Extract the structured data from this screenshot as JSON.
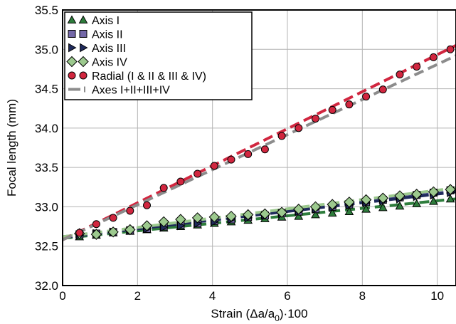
{
  "chart_data": {
    "type": "scatter",
    "xlabel_main": "Strain (Δa/a",
    "xlabel_sub": "0",
    "xlabel_tail": ")·100",
    "ylabel": "Focal length (mm)",
    "xlim": [
      0,
      10.5
    ],
    "ylim": [
      32.0,
      35.5
    ],
    "xticks": [
      "0",
      "2",
      "4",
      "6",
      "8",
      "10"
    ],
    "yticks": [
      "32.0",
      "32.5",
      "33.0",
      "33.5",
      "34.0",
      "34.5",
      "35.0",
      "35.5"
    ],
    "grid": true,
    "legend_position": "top-left",
    "series": [
      {
        "name": "Axis I",
        "marker": "triangle-up",
        "fill": "#2e7d3c",
        "line_color": "#2e7d3c",
        "x": [
          0.45,
          0.9,
          1.35,
          1.8,
          2.25,
          2.7,
          3.15,
          3.6,
          4.05,
          4.5,
          4.95,
          5.4,
          5.85,
          6.3,
          6.75,
          7.2,
          7.65,
          8.1,
          8.55,
          9.0,
          9.45,
          9.9,
          10.35
        ],
        "y": [
          32.62,
          32.64,
          32.67,
          32.69,
          32.71,
          32.73,
          32.75,
          32.77,
          32.79,
          32.81,
          32.83,
          32.85,
          32.87,
          32.88,
          32.9,
          32.92,
          32.94,
          32.97,
          32.99,
          33.01,
          33.04,
          33.07,
          33.1
        ],
        "fit": [
          [
            0,
            32.6
          ],
          [
            10.5,
            33.1
          ]
        ]
      },
      {
        "name": "Axis II",
        "marker": "square",
        "fill": "#7468a8",
        "line_color": "#4a4a8a",
        "x": [
          0.45,
          0.9,
          1.35,
          1.8,
          2.25,
          2.7,
          3.15,
          3.6,
          4.05,
          4.5,
          4.95,
          5.4,
          5.85,
          6.3,
          6.75,
          7.2,
          7.65,
          8.1,
          8.55,
          9.0,
          9.45,
          9.9,
          10.35
        ],
        "y": [
          32.65,
          32.66,
          32.68,
          32.7,
          32.72,
          32.75,
          32.77,
          32.79,
          32.82,
          32.84,
          32.87,
          32.89,
          32.92,
          32.94,
          32.97,
          33.0,
          33.03,
          33.06,
          33.09,
          33.12,
          33.15,
          33.18,
          33.21
        ],
        "fit": [
          [
            0,
            32.62
          ],
          [
            10.5,
            33.2
          ]
        ]
      },
      {
        "name": "Axis III",
        "marker": "triangle-right",
        "fill": "#1f2a5c",
        "line_color": "#1f2a5c",
        "x": [
          0.45,
          0.9,
          1.35,
          1.8,
          2.25,
          2.7,
          3.15,
          3.6,
          4.05,
          4.5,
          4.95,
          5.4,
          5.85,
          6.3,
          6.75,
          7.2,
          7.65,
          8.1,
          8.55,
          9.0,
          9.45,
          9.9,
          10.35
        ],
        "y": [
          32.64,
          32.66,
          32.68,
          32.7,
          32.72,
          32.74,
          32.76,
          32.79,
          32.81,
          32.84,
          32.86,
          32.89,
          32.91,
          32.94,
          32.97,
          32.99,
          33.02,
          33.05,
          33.07,
          33.1,
          33.13,
          33.15,
          33.18
        ],
        "fit": [
          [
            0,
            32.61
          ],
          [
            10.5,
            33.19
          ]
        ]
      },
      {
        "name": "Axis IV",
        "marker": "diamond",
        "fill": "#9cc98e",
        "line_color": "#9cc98e",
        "x": [
          0.45,
          0.9,
          1.35,
          1.8,
          2.25,
          2.7,
          3.15,
          3.6,
          4.05,
          4.5,
          4.95,
          5.4,
          5.85,
          6.3,
          6.75,
          7.2,
          7.65,
          8.1,
          8.55,
          9.0,
          9.45,
          9.9,
          10.35
        ],
        "y": [
          32.66,
          32.65,
          32.68,
          32.71,
          32.76,
          32.81,
          32.84,
          32.86,
          32.87,
          32.88,
          32.9,
          32.91,
          32.93,
          32.97,
          33.0,
          33.03,
          33.06,
          33.09,
          33.11,
          33.14,
          33.16,
          33.19,
          33.22
        ],
        "fit": [
          [
            0,
            32.62
          ],
          [
            10.5,
            33.24
          ]
        ]
      },
      {
        "name": "Radial (I & II & III & IV)",
        "marker": "circle",
        "fill": "#d1263f",
        "line_color": "#d1263f",
        "x": [
          0.45,
          0.9,
          1.35,
          1.8,
          2.25,
          2.7,
          3.15,
          3.6,
          4.05,
          4.5,
          4.95,
          5.4,
          5.85,
          6.3,
          6.75,
          7.2,
          7.65,
          8.1,
          8.55,
          9.0,
          9.45,
          9.9,
          10.35
        ],
        "y": [
          32.67,
          32.78,
          32.86,
          32.95,
          33.02,
          33.24,
          33.32,
          33.42,
          33.52,
          33.6,
          33.67,
          33.73,
          33.9,
          34.0,
          34.12,
          34.23,
          34.3,
          34.4,
          34.49,
          34.68,
          34.78,
          34.9,
          35.0
        ],
        "fit": [
          [
            0,
            32.58
          ],
          [
            10.5,
            35.05
          ]
        ]
      }
    ],
    "combined_fit": {
      "name": "Axes I+II+III+IV",
      "line_color": "#8c8c8c",
      "points": [
        [
          0,
          32.58
        ],
        [
          10.5,
          34.92
        ]
      ]
    }
  }
}
